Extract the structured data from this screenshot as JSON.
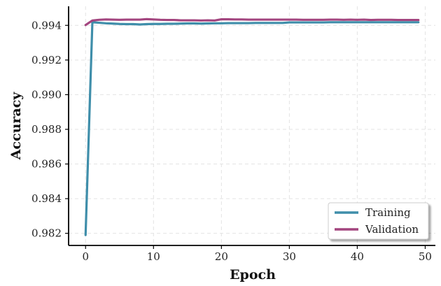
{
  "chart_data": {
    "type": "line",
    "title": "",
    "xlabel": "Epoch",
    "ylabel": "Accuracy",
    "xlim": [
      -2.5,
      51.5
    ],
    "ylim": [
      0.9813,
      0.9951
    ],
    "xticks": [
      0,
      10,
      20,
      30,
      40,
      50
    ],
    "xtick_labels": [
      "0",
      "10",
      "20",
      "30",
      "40",
      "50"
    ],
    "yticks": [
      0.982,
      0.984,
      0.986,
      0.988,
      0.99,
      0.992,
      0.994
    ],
    "ytick_labels": [
      "0.982",
      "0.984",
      "0.986",
      "0.988",
      "0.990",
      "0.992",
      "0.994"
    ],
    "grid": true,
    "legend_position": "bottom-right",
    "x": [
      0,
      1,
      2,
      3,
      4,
      5,
      6,
      7,
      8,
      9,
      10,
      11,
      12,
      13,
      14,
      15,
      16,
      17,
      18,
      19,
      20,
      21,
      22,
      23,
      24,
      25,
      26,
      27,
      28,
      29,
      30,
      31,
      32,
      33,
      34,
      35,
      36,
      37,
      38,
      39,
      40,
      41,
      42,
      43,
      44,
      45,
      46,
      47,
      48,
      49
    ],
    "series": [
      {
        "name": "Training",
        "color": "#3f8eaa",
        "values": [
          0.9819,
          0.99418,
          0.99415,
          0.99412,
          0.9941,
          0.99408,
          0.99407,
          0.99407,
          0.99405,
          0.99407,
          0.99408,
          0.99408,
          0.99409,
          0.99409,
          0.9941,
          0.99411,
          0.99411,
          0.9941,
          0.99411,
          0.99412,
          0.99412,
          0.99413,
          0.99413,
          0.99413,
          0.99413,
          0.99414,
          0.99414,
          0.99414,
          0.99414,
          0.99414,
          0.99417,
          0.99417,
          0.99417,
          0.99417,
          0.99417,
          0.99417,
          0.99418,
          0.99418,
          0.99418,
          0.99418,
          0.99418,
          0.99418,
          0.99418,
          0.99418,
          0.99418,
          0.99418,
          0.99418,
          0.99418,
          0.99418,
          0.99418
        ]
      },
      {
        "name": "Validation",
        "color": "#a3457f",
        "values": [
          0.99402,
          0.99428,
          0.99432,
          0.99434,
          0.99433,
          0.99432,
          0.99433,
          0.99433,
          0.99433,
          0.99436,
          0.99434,
          0.99432,
          0.99431,
          0.99431,
          0.99429,
          0.99429,
          0.99429,
          0.99428,
          0.99429,
          0.99428,
          0.99435,
          0.99435,
          0.99434,
          0.99434,
          0.99433,
          0.99433,
          0.99433,
          0.99433,
          0.99433,
          0.99433,
          0.99433,
          0.99433,
          0.99432,
          0.99432,
          0.99432,
          0.99432,
          0.99433,
          0.99433,
          0.99432,
          0.99433,
          0.99432,
          0.99433,
          0.99431,
          0.99432,
          0.99432,
          0.99432,
          0.99431,
          0.99431,
          0.99431,
          0.99431
        ]
      }
    ]
  }
}
